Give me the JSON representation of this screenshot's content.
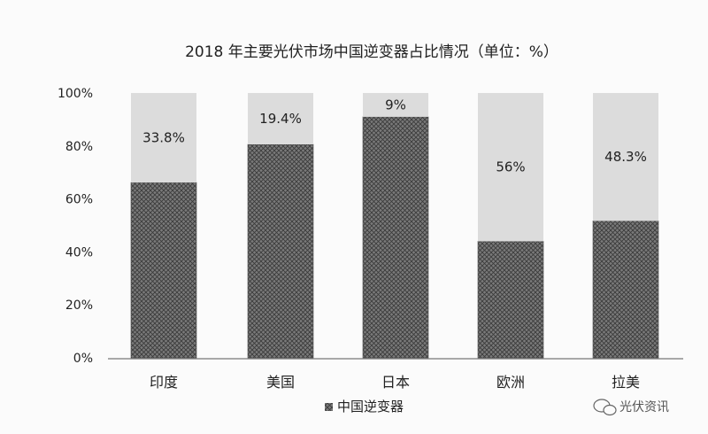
{
  "chart_data": {
    "type": "bar",
    "stacked": true,
    "percent": true,
    "title": "2018 年主要光伏市场中国逆变器占比情况（单位：%）",
    "categories": [
      "印度",
      "美国",
      "日本",
      "欧洲",
      "拉美"
    ],
    "series": [
      {
        "name": "中国逆变器",
        "values": [
          66.2,
          80.6,
          91,
          44,
          51.7
        ],
        "pattern": "crosshatch",
        "color": "#6e6e6e"
      },
      {
        "name": "",
        "values": [
          33.8,
          19.4,
          9,
          56,
          48.3
        ],
        "color": "#dcdcdc"
      }
    ],
    "data_labels": [
      "33.8%",
      "19.4%",
      "9%",
      "56%",
      "48.3%"
    ],
    "ylim": [
      0,
      100
    ],
    "yticks": [
      0,
      20,
      40,
      60,
      80,
      100
    ],
    "ytick_labels": [
      "0%",
      "20%",
      "40%",
      "60%",
      "80%",
      "100%"
    ],
    "grid": false,
    "legend_position": "bottom"
  },
  "watermark": {
    "text": "光伏资讯",
    "icon": "wechat-icon"
  }
}
